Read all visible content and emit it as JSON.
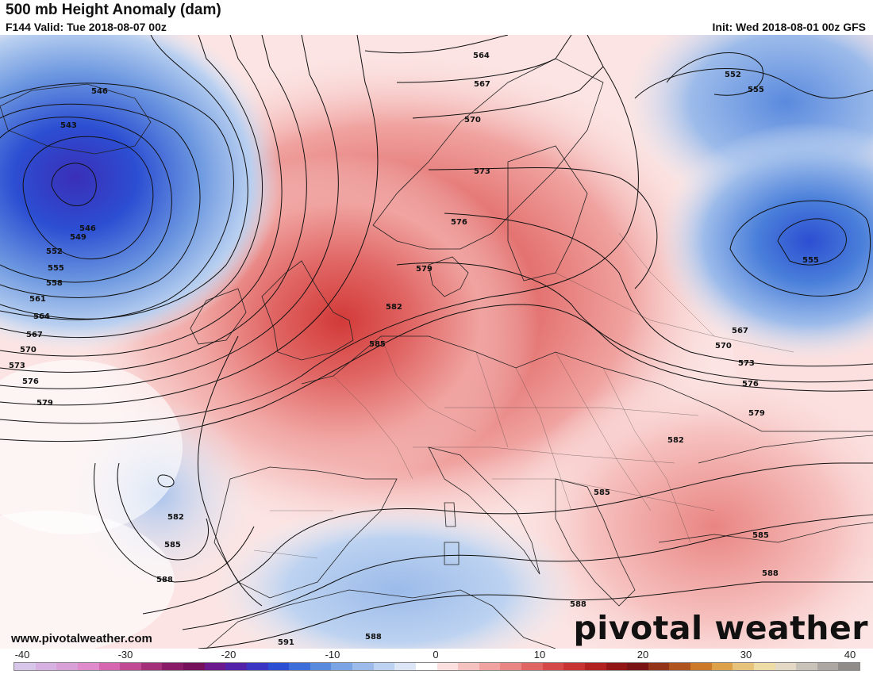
{
  "header": {
    "title": "500 mb Height Anomaly (dam)",
    "valid": "F144 Valid: Tue 2018-08-07 00z",
    "init": "Init: Wed 2018-08-01 00z GFS"
  },
  "footer": {
    "website": "www.pivotalweather.com",
    "brand": "pivotal weather"
  },
  "colorbar": {
    "ticks": [
      "-40",
      "-30",
      "-20",
      "-10",
      "0",
      "10",
      "20",
      "30",
      "40"
    ],
    "colors": [
      "#d8c6ea",
      "#d6b1e2",
      "#d9a0d8",
      "#e08bcb",
      "#d766b0",
      "#c24a95",
      "#a5307a",
      "#8a1b66",
      "#74115a",
      "#6a1a8c",
      "#5222a8",
      "#3b35c4",
      "#2c4ed2",
      "#3d6dd8",
      "#5a8ade",
      "#7aa4e4",
      "#9cbbea",
      "#bcd2f0",
      "#dce6f6",
      "#ffffff",
      "#fbe0df",
      "#f6c2c0",
      "#f0a3a0",
      "#e98582",
      "#e06664",
      "#d54a48",
      "#c73432",
      "#b02120",
      "#921616",
      "#7a1414",
      "#93331a",
      "#b0541f",
      "#cc7a2a",
      "#dda14a",
      "#e7c27a",
      "#eedca6",
      "#e3d9c5",
      "#c9c2b8",
      "#aca7a2",
      "#8f8c89"
    ]
  },
  "map": {
    "height_contour_labels": [
      {
        "text": "546"
      },
      {
        "text": "543"
      },
      {
        "text": "546"
      },
      {
        "text": "549"
      },
      {
        "text": "552"
      },
      {
        "text": "555"
      },
      {
        "text": "558"
      },
      {
        "text": "561"
      },
      {
        "text": "564"
      },
      {
        "text": "567"
      },
      {
        "text": "570"
      },
      {
        "text": "573"
      },
      {
        "text": "576"
      },
      {
        "text": "579"
      },
      {
        "text": "564"
      },
      {
        "text": "567"
      },
      {
        "text": "570"
      },
      {
        "text": "573"
      },
      {
        "text": "576"
      },
      {
        "text": "579"
      },
      {
        "text": "582"
      },
      {
        "text": "585"
      },
      {
        "text": "552"
      },
      {
        "text": "555"
      },
      {
        "text": "555"
      },
      {
        "text": "567"
      },
      {
        "text": "570"
      },
      {
        "text": "573"
      },
      {
        "text": "576"
      },
      {
        "text": "579"
      },
      {
        "text": "582"
      },
      {
        "text": "585"
      },
      {
        "text": "585"
      },
      {
        "text": "588"
      },
      {
        "text": "582"
      },
      {
        "text": "585"
      },
      {
        "text": "588"
      },
      {
        "text": "588"
      },
      {
        "text": "588"
      },
      {
        "text": "591"
      }
    ]
  }
}
